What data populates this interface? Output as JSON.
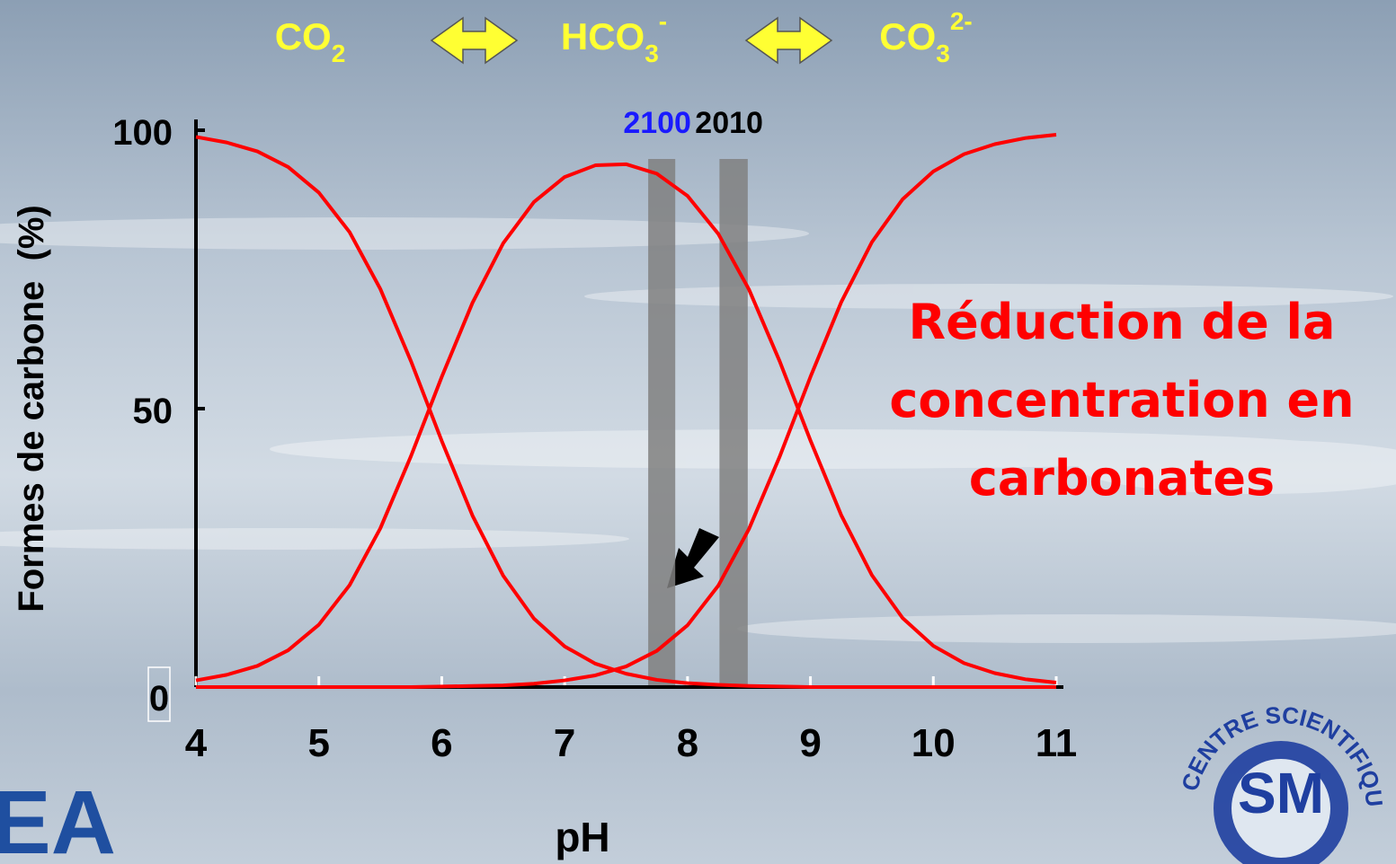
{
  "chart_data": {
    "type": "line",
    "species": [
      {
        "base": "CO",
        "sub": "2"
      },
      {
        "base": "HCO",
        "sub": "3",
        "sup": "-"
      },
      {
        "base": "CO",
        "sub": "3",
        "sup": "2-"
      }
    ],
    "x_label": "pH",
    "y_label": "Formes de carbone  (%)",
    "x": [
      4,
      4.25,
      4.5,
      4.75,
      5,
      5.25,
      5.5,
      5.75,
      6,
      6.25,
      6.5,
      6.75,
      7,
      7.25,
      7.5,
      7.75,
      8,
      8.25,
      8.5,
      8.75,
      9,
      9.25,
      9.5,
      9.75,
      10,
      10.25,
      10.5,
      10.75,
      11
    ],
    "series": [
      {
        "color": "#ff0000",
        "values": [
          98.8,
          97.8,
          96.2,
          93.4,
          88.8,
          81.7,
          71.5,
          58.5,
          44.2,
          30.8,
          20.0,
          12.3,
          7.3,
          4.2,
          2.4,
          1.3,
          0.7,
          0.4,
          0.2,
          0.1,
          0,
          0,
          0,
          0,
          0,
          0,
          0,
          0,
          0
        ]
      },
      {
        "color": "#ff0000",
        "values": [
          1.2,
          2.2,
          3.8,
          6.6,
          11.2,
          18.3,
          28.5,
          41.5,
          55.7,
          69.0,
          79.7,
          87.1,
          91.6,
          93.7,
          93.9,
          92.2,
          88.2,
          81.4,
          71.4,
          58.5,
          44.3,
          30.9,
          20.1,
          12.4,
          7.4,
          4.3,
          2.5,
          1.4,
          0.8
        ]
      },
      {
        "color": "#ff0000",
        "values": [
          0,
          0,
          0,
          0,
          0,
          0,
          0,
          0,
          0.1,
          0.2,
          0.3,
          0.6,
          1.2,
          2.1,
          3.7,
          6.5,
          11.1,
          18.2,
          28.4,
          41.4,
          55.7,
          69.1,
          79.9,
          87.6,
          92.6,
          95.7,
          97.5,
          98.6,
          99.2
        ]
      }
    ],
    "bands": [
      {
        "label": "2100",
        "label_color": "#1a1aff",
        "from": 7.68,
        "to": 7.9,
        "color": "#808080"
      },
      {
        "label": "2010",
        "label_color": "#000000",
        "from": 8.26,
        "to": 8.49,
        "color": "#808080"
      }
    ],
    "annotation": [
      "Réduction de la",
      "concentration en",
      "carbonates"
    ],
    "xlim": [
      4,
      11
    ],
    "xticks": [
      4,
      5,
      6,
      7,
      8,
      9,
      10,
      11
    ],
    "ylim": [
      0,
      100
    ],
    "yticks": [
      0,
      50,
      100
    ]
  },
  "logos": {
    "left": "EA",
    "ring": "CENTRE SCIENTIFIQUE",
    "center": "SM"
  }
}
